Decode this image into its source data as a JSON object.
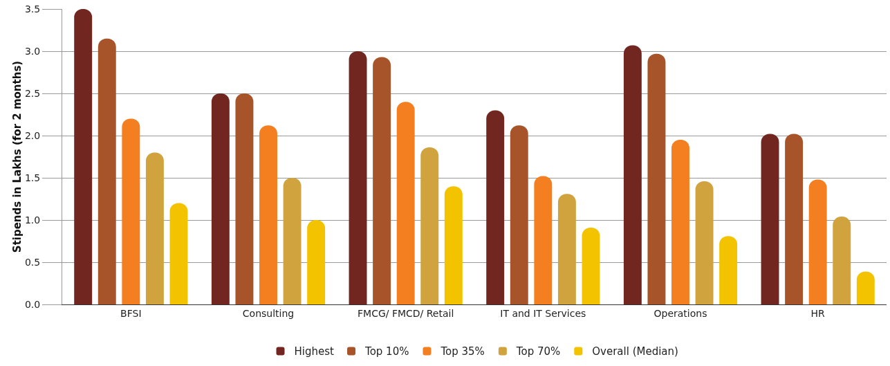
{
  "chart_data": {
    "type": "bar",
    "ylabel": "Stipends in Lakhs (for 2 months)",
    "categories": [
      "BFSI",
      "Consulting",
      "FMCG/ FMCD/ Retail",
      "IT and IT Services",
      "Operations",
      "HR"
    ],
    "series": [
      {
        "name": "Highest",
        "color": "#722620",
        "values": [
          3.5,
          2.5,
          3.0,
          2.3,
          3.07,
          2.02
        ]
      },
      {
        "name": "Top 10%",
        "color": "#a8542a",
        "values": [
          3.15,
          2.5,
          2.93,
          2.12,
          2.97,
          2.02
        ]
      },
      {
        "name": "Top 35%",
        "color": "#f47f20",
        "values": [
          2.2,
          2.12,
          2.4,
          1.52,
          1.95,
          1.48
        ]
      },
      {
        "name": "Top 70%",
        "color": "#d0a33f",
        "values": [
          1.8,
          1.5,
          1.86,
          1.31,
          1.46,
          1.04
        ]
      },
      {
        "name": "Overall (Median)",
        "color": "#f4c300",
        "values": [
          1.2,
          1.0,
          1.4,
          0.91,
          0.81,
          0.39
        ]
      }
    ],
    "ylim": [
      0,
      3.5
    ],
    "yticks": [
      {
        "value": 0,
        "label": "0.0"
      },
      {
        "value": 0.5,
        "label": "0.5"
      },
      {
        "value": 1,
        "label": "1.0"
      },
      {
        "value": 1.5,
        "label": "1.5"
      },
      {
        "value": 2,
        "label": "2.0"
      },
      {
        "value": 2.5,
        "label": "2.5"
      },
      {
        "value": 3,
        "label": "3.0"
      },
      {
        "value": 3.5,
        "label": "3.5"
      }
    ],
    "grid": "y",
    "legend": "bottom"
  }
}
